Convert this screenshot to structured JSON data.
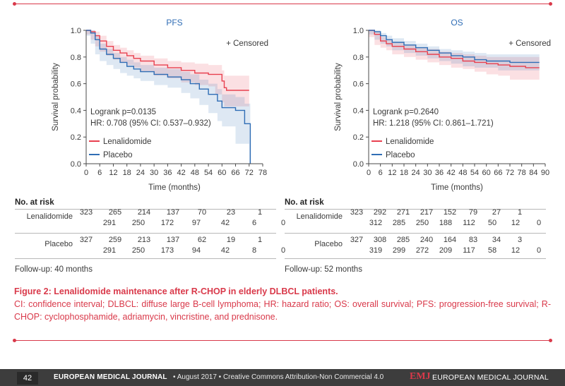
{
  "chart_data": [
    {
      "type": "line",
      "title": "PFS",
      "xlabel": "Time (months)",
      "ylabel": "Survival probability",
      "xlim": [
        0,
        78
      ],
      "ylim": [
        0,
        1
      ],
      "xticks": [
        0,
        6,
        12,
        18,
        24,
        30,
        36,
        42,
        48,
        54,
        60,
        66,
        72,
        78
      ],
      "yticks": [
        "0.0",
        "0.2",
        "0.4",
        "0.6",
        "0.8",
        "1.0"
      ],
      "censored_label": "+ Censored",
      "stats_lines": [
        "Logrank p=0.0135",
        "HR: 0.708 (95% CI: 0.537–0.932)"
      ],
      "series": [
        {
          "name": "Lenalidomide",
          "color": "#e8404f",
          "x": [
            0,
            2,
            4,
            6,
            9,
            12,
            15,
            18,
            21,
            24,
            30,
            36,
            42,
            48,
            54,
            57,
            60,
            61,
            62,
            72
          ],
          "y": [
            1.0,
            0.99,
            0.96,
            0.92,
            0.88,
            0.85,
            0.83,
            0.81,
            0.79,
            0.77,
            0.74,
            0.72,
            0.7,
            0.68,
            0.67,
            0.67,
            0.62,
            0.57,
            0.55,
            0.55
          ],
          "ci_upper": [
            1.0,
            1.0,
            0.99,
            0.96,
            0.92,
            0.89,
            0.87,
            0.85,
            0.83,
            0.81,
            0.79,
            0.77,
            0.76,
            0.75,
            0.74,
            0.74,
            0.7,
            0.66,
            0.66,
            0.66
          ],
          "ci_lower": [
            1.0,
            0.97,
            0.93,
            0.88,
            0.84,
            0.81,
            0.78,
            0.76,
            0.74,
            0.72,
            0.69,
            0.66,
            0.64,
            0.61,
            0.59,
            0.58,
            0.52,
            0.46,
            0.43,
            0.43
          ]
        },
        {
          "name": "Placebo",
          "color": "#2f6db5",
          "x": [
            0,
            2,
            4,
            6,
            9,
            12,
            15,
            18,
            21,
            24,
            30,
            36,
            42,
            46,
            50,
            54,
            58,
            60,
            66,
            70,
            72,
            72.5
          ],
          "y": [
            1.0,
            0.98,
            0.93,
            0.86,
            0.82,
            0.79,
            0.76,
            0.73,
            0.71,
            0.69,
            0.67,
            0.65,
            0.63,
            0.6,
            0.56,
            0.52,
            0.47,
            0.42,
            0.4,
            0.3,
            0.3,
            0.0
          ],
          "ci_upper": [
            1.0,
            1.0,
            0.96,
            0.9,
            0.86,
            0.83,
            0.8,
            0.78,
            0.76,
            0.74,
            0.72,
            0.71,
            0.69,
            0.67,
            0.63,
            0.6,
            0.56,
            0.52,
            0.5,
            0.45,
            0.45,
            0.45
          ],
          "ci_lower": [
            1.0,
            0.96,
            0.9,
            0.82,
            0.77,
            0.74,
            0.71,
            0.68,
            0.66,
            0.64,
            0.62,
            0.59,
            0.57,
            0.53,
            0.49,
            0.44,
            0.38,
            0.32,
            0.28,
            0.15,
            0.15,
            0.0
          ]
        }
      ]
    },
    {
      "type": "line",
      "title": "OS",
      "xlabel": "Time (months)",
      "ylabel": "Survival probability",
      "xlim": [
        0,
        90
      ],
      "ylim": [
        0,
        1
      ],
      "xticks": [
        0,
        6,
        12,
        18,
        24,
        30,
        36,
        42,
        48,
        54,
        60,
        66,
        72,
        78,
        84,
        90
      ],
      "yticks": [
        "0.0",
        "0.2",
        "0.4",
        "0.6",
        "0.8",
        "1.0"
      ],
      "censored_label": "+ Censored",
      "stats_lines": [
        "Logrank p=0.2640",
        "HR: 1.218 (95% CI: 0.861–1.721)"
      ],
      "series": [
        {
          "name": "Lenalidomide",
          "color": "#e8404f",
          "x": [
            0,
            3,
            6,
            9,
            12,
            18,
            24,
            30,
            36,
            42,
            48,
            54,
            60,
            66,
            72,
            80,
            87
          ],
          "y": [
            1.0,
            0.97,
            0.92,
            0.9,
            0.88,
            0.86,
            0.84,
            0.82,
            0.8,
            0.79,
            0.77,
            0.76,
            0.75,
            0.74,
            0.73,
            0.72,
            0.72
          ],
          "ci_upper": [
            1.0,
            0.99,
            0.95,
            0.93,
            0.91,
            0.89,
            0.87,
            0.86,
            0.84,
            0.83,
            0.82,
            0.81,
            0.8,
            0.8,
            0.8,
            0.8,
            0.8
          ],
          "ci_lower": [
            1.0,
            0.95,
            0.89,
            0.87,
            0.85,
            0.82,
            0.8,
            0.78,
            0.76,
            0.74,
            0.72,
            0.71,
            0.69,
            0.67,
            0.66,
            0.63,
            0.63
          ]
        },
        {
          "name": "Placebo",
          "color": "#2f6db5",
          "x": [
            0,
            3,
            6,
            9,
            12,
            18,
            24,
            30,
            36,
            42,
            48,
            54,
            60,
            66,
            72,
            78,
            87
          ],
          "y": [
            1.0,
            0.99,
            0.96,
            0.93,
            0.91,
            0.89,
            0.87,
            0.85,
            0.83,
            0.81,
            0.8,
            0.78,
            0.77,
            0.77,
            0.76,
            0.76,
            0.76
          ],
          "ci_upper": [
            1.0,
            1.0,
            0.98,
            0.96,
            0.94,
            0.92,
            0.9,
            0.88,
            0.86,
            0.85,
            0.84,
            0.83,
            0.82,
            0.82,
            0.82,
            0.82,
            0.82
          ],
          "ci_lower": [
            1.0,
            0.97,
            0.93,
            0.9,
            0.88,
            0.85,
            0.83,
            0.81,
            0.79,
            0.77,
            0.75,
            0.73,
            0.72,
            0.72,
            0.7,
            0.7,
            0.7
          ]
        }
      ]
    }
  ],
  "risk_tables": [
    {
      "heading": "No. at risk",
      "rows": [
        {
          "label": "Lenalidomide",
          "top": [
            "323",
            "265",
            "214",
            "137",
            "70",
            "23",
            "1"
          ],
          "bottom": [
            "291",
            "250",
            "172",
            "97",
            "42",
            "6",
            "0"
          ]
        },
        {
          "label": "Placebo",
          "top": [
            "327",
            "259",
            "213",
            "137",
            "62",
            "19",
            "1"
          ],
          "bottom": [
            "291",
            "250",
            "173",
            "94",
            "42",
            "8",
            "0"
          ]
        }
      ],
      "followup": "Follow-up: 40 months"
    },
    {
      "heading": "No. at risk",
      "rows": [
        {
          "label": "Lenalidomide",
          "top": [
            "323",
            "292",
            "271",
            "217",
            "152",
            "79",
            "27",
            "1"
          ],
          "bottom": [
            "312",
            "285",
            "250",
            "188",
            "112",
            "50",
            "12",
            "0"
          ]
        },
        {
          "label": "Placebo",
          "top": [
            "327",
            "308",
            "285",
            "240",
            "164",
            "83",
            "34",
            "3"
          ],
          "bottom": [
            "319",
            "299",
            "272",
            "209",
            "117",
            "58",
            "12",
            "0"
          ]
        }
      ],
      "followup": "Follow-up: 52 months"
    }
  ],
  "caption": {
    "title": "Figure 2: Lenalidomide maintenance after R-CHOP in elderly DLBCL patients.",
    "body": "CI: confidence interval; DLBCL: diffuse large B-cell lymphoma; HR: hazard ratio; OS: overall survival; PFS: progression-free survival; R-CHOP: cyclophosphamide, adriamycin, vincristine, and prednisone."
  },
  "footer": {
    "page": "42",
    "journal": "EUROPEAN MEDICAL JOURNAL",
    "text": "•  August 2017  •  Creative Commons Attribution-Non Commercial 4.0",
    "logo": "EMJ",
    "journal_right": "EUROPEAN MEDICAL JOURNAL"
  },
  "colors": {
    "accent": "#d9394a",
    "lenalidomide": "#e8404f",
    "placebo": "#2f6db5"
  }
}
